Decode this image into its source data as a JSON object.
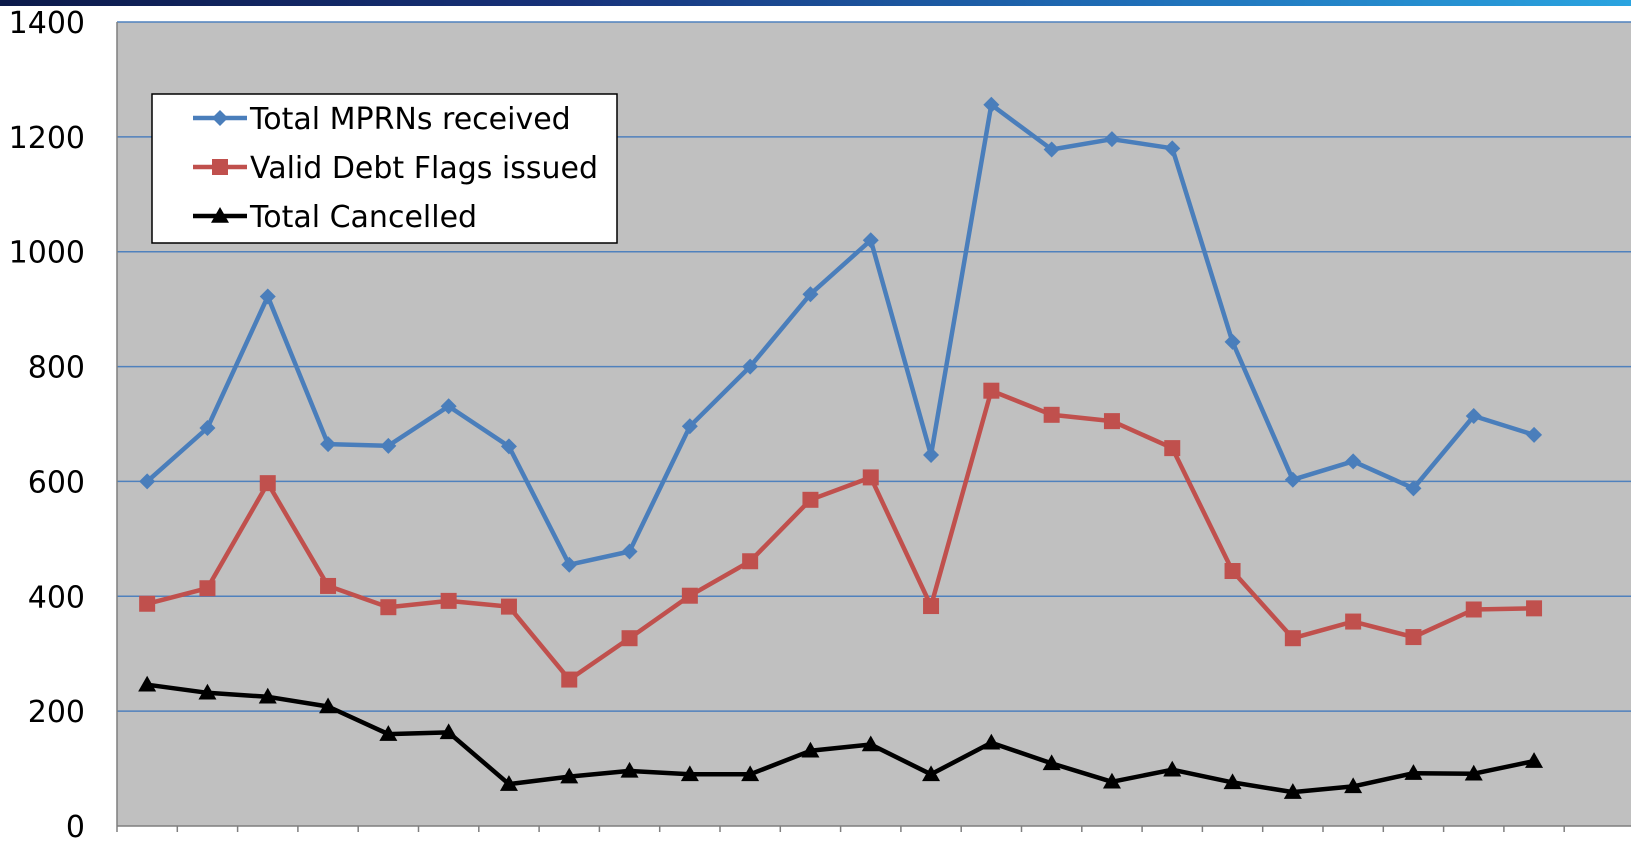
{
  "chart_data": {
    "type": "line",
    "title": "",
    "xlabel": "",
    "ylabel": "",
    "ylim": [
      0,
      1400
    ],
    "yticks": [
      0,
      200,
      400,
      600,
      800,
      1000,
      1200,
      1400
    ],
    "ytick_labels": [
      "0",
      "200",
      "400",
      "600",
      "800",
      "1000",
      "1200",
      "1400"
    ],
    "x": [
      1,
      2,
      3,
      4,
      5,
      6,
      7,
      8,
      9,
      10,
      11,
      12,
      13,
      14,
      15,
      16,
      17,
      18,
      19,
      20,
      21,
      22,
      23,
      24
    ],
    "grid": "horizontal",
    "legend_position": "top-left",
    "plot_background": "#c0c0c0",
    "gridline_color": "#4f81bd",
    "series": [
      {
        "name": "Total MPRNs received",
        "color": "#4a7ebb",
        "marker": "diamond",
        "values": [
          600,
          693,
          922,
          665,
          662,
          731,
          661,
          455,
          478,
          696,
          800,
          926,
          1020,
          646,
          1256,
          1178,
          1196,
          1180,
          843,
          603,
          635,
          588,
          714,
          681
        ]
      },
      {
        "name": "Valid Debt Flags issued",
        "color": "#c0504d",
        "marker": "square",
        "values": [
          387,
          414,
          597,
          418,
          381,
          392,
          382,
          255,
          327,
          401,
          461,
          568,
          607,
          383,
          758,
          716,
          705,
          658,
          444,
          327,
          356,
          329,
          377,
          379
        ]
      },
      {
        "name": "Total Cancelled",
        "color": "#000000",
        "marker": "triangle",
        "values": [
          246,
          232,
          225,
          208,
          160,
          163,
          73,
          86,
          96,
          90,
          90,
          131,
          142,
          90,
          145,
          109,
          77,
          98,
          76,
          59,
          69,
          92,
          91,
          113
        ]
      }
    ]
  }
}
